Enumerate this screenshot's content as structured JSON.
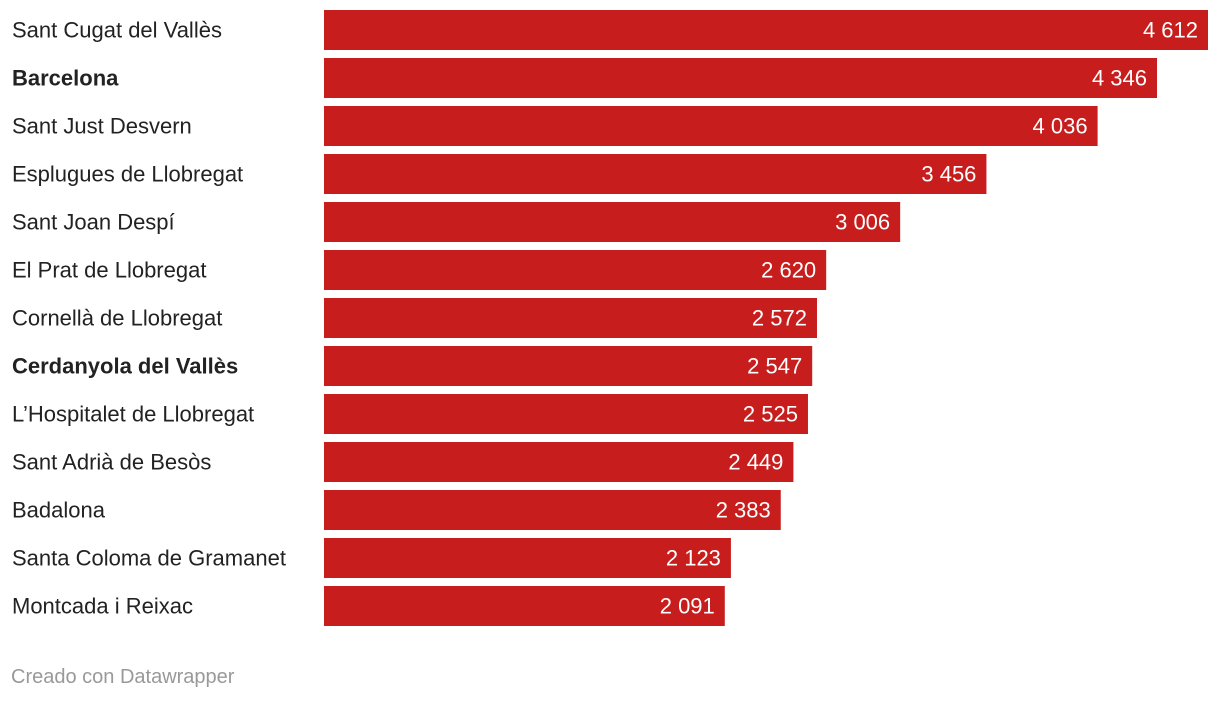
{
  "chart_data": {
    "type": "bar",
    "orientation": "horizontal",
    "title": "",
    "xlabel": "",
    "ylabel": "",
    "xlim": [
      0,
      4612
    ],
    "grid": false,
    "legend": "none",
    "bar_color": "#c81d1d",
    "value_label_color": "#ffffff",
    "label_color": "#222222",
    "categories": [
      "Sant Cugat del Vallès",
      "Barcelona",
      "Sant Just Desvern",
      "Esplugues de Llobregat",
      "Sant Joan Despí",
      "El Prat de Llobregat",
      "Cornellà de Llobregat",
      "Cerdanyola del Vallès",
      "L’Hospitalet de Llobregat",
      "Sant Adrià de Besòs",
      "Badalona",
      "Santa Coloma de Gramanet",
      "Montcada i Reixac"
    ],
    "bold_categories": [
      "Barcelona",
      "Cerdanyola del Vallès"
    ],
    "values": [
      4612,
      4346,
      4036,
      3456,
      3006,
      2620,
      2572,
      2547,
      2525,
      2449,
      2383,
      2123,
      2091
    ],
    "value_labels": [
      "4 612",
      "4 346",
      "4 036",
      "3 456",
      "3 006",
      "2 620",
      "2 572",
      "2 547",
      "2 525",
      "2 449",
      "2 383",
      "2 123",
      "2 091"
    ]
  },
  "footer": {
    "credit": "Creado con Datawrapper"
  }
}
